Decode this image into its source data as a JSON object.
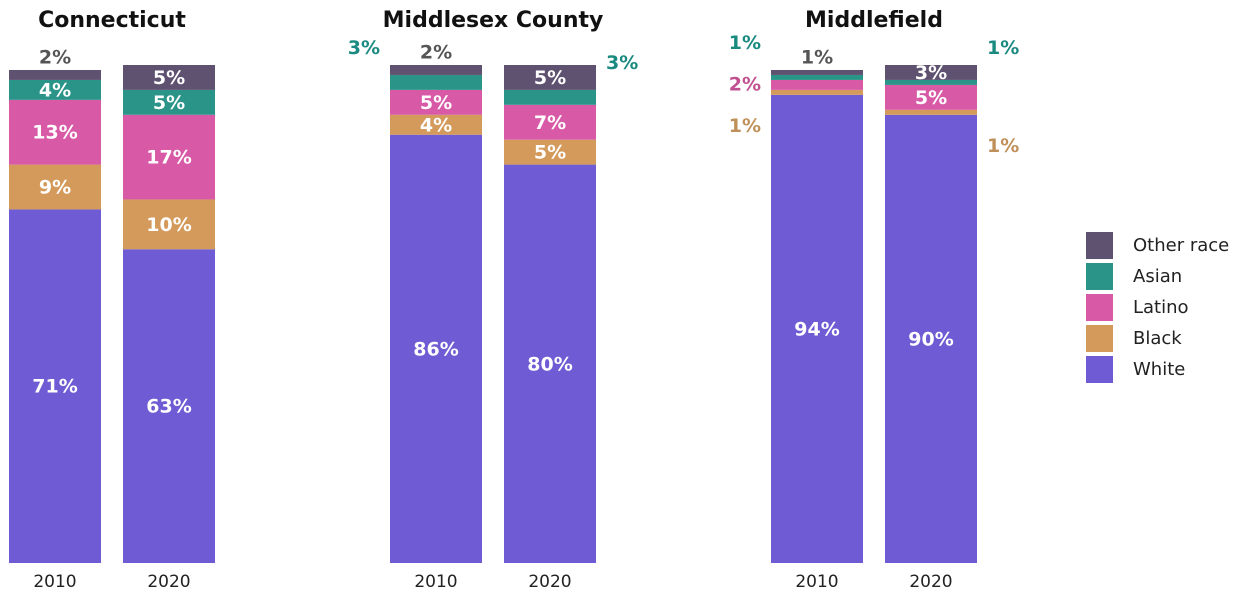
{
  "chart_data": [
    {
      "type": "bar",
      "stacked": true,
      "title": "Connecticut",
      "categories": [
        "2010",
        "2020"
      ],
      "series": [
        {
          "name": "White",
          "color": "#6f5bd3",
          "values": [
            71,
            63
          ],
          "value_labels": [
            "71%",
            "63%"
          ]
        },
        {
          "name": "Black",
          "color": "#d49a5c",
          "values": [
            9,
            10
          ],
          "value_labels": [
            "9%",
            "10%"
          ]
        },
        {
          "name": "Latino",
          "color": "#d85aa7",
          "values": [
            13,
            17
          ],
          "value_labels": [
            "13%",
            "17%"
          ]
        },
        {
          "name": "Asian",
          "color": "#2a9488",
          "values": [
            4,
            5
          ],
          "value_labels": [
            "4%",
            "5%"
          ]
        },
        {
          "name": "Other race",
          "color": "#5e5270",
          "values": [
            2,
            5
          ],
          "value_labels": [
            "2%",
            "5%"
          ]
        }
      ]
    },
    {
      "type": "bar",
      "stacked": true,
      "title": "Middlesex County",
      "categories": [
        "2010",
        "2020"
      ],
      "series": [
        {
          "name": "White",
          "color": "#6f5bd3",
          "values": [
            86,
            80
          ],
          "value_labels": [
            "86%",
            "80%"
          ]
        },
        {
          "name": "Black",
          "color": "#d49a5c",
          "values": [
            4,
            5
          ],
          "value_labels": [
            "4%",
            "5%"
          ]
        },
        {
          "name": "Latino",
          "color": "#d85aa7",
          "values": [
            5,
            7
          ],
          "value_labels": [
            "5%",
            "7%"
          ]
        },
        {
          "name": "Asian",
          "color": "#2a9488",
          "values": [
            3,
            3
          ],
          "value_labels": [
            "3%",
            "3%"
          ]
        },
        {
          "name": "Other race",
          "color": "#5e5270",
          "values": [
            2,
            5
          ],
          "value_labels": [
            "2%",
            "5%"
          ]
        }
      ]
    },
    {
      "type": "bar",
      "stacked": true,
      "title": "Middlefield",
      "categories": [
        "2010",
        "2020"
      ],
      "series": [
        {
          "name": "White",
          "color": "#6f5bd3",
          "values": [
            94,
            90
          ],
          "value_labels": [
            "94%",
            "90%"
          ]
        },
        {
          "name": "Black",
          "color": "#d49a5c",
          "values": [
            1,
            1
          ],
          "value_labels": [
            "1%",
            "1%"
          ]
        },
        {
          "name": "Latino",
          "color": "#d85aa7",
          "values": [
            2,
            5
          ],
          "value_labels": [
            "2%",
            "5%"
          ]
        },
        {
          "name": "Asian",
          "color": "#2a9488",
          "values": [
            1,
            1
          ],
          "value_labels": [
            "1%",
            "1%"
          ]
        },
        {
          "name": "Other race",
          "color": "#5e5270",
          "values": [
            1,
            3
          ],
          "value_labels": [
            "1%",
            "3%"
          ]
        }
      ]
    }
  ]
}
